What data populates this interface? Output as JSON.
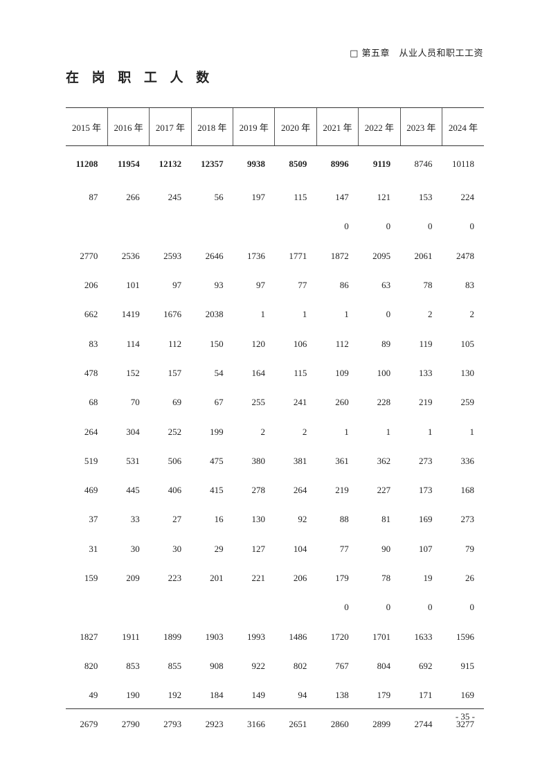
{
  "header": {
    "chapter": "□ 第五章　从业人员和职工工资"
  },
  "title": "在 岗 职 工 人 数",
  "table": {
    "columns": [
      "2015 年",
      "2016 年",
      "2017 年",
      "2018 年",
      "2019 年",
      "2020 年",
      "2021 年",
      "2022 年",
      "2023 年",
      "2024 年"
    ],
    "bold_first_row_columns": 8,
    "rows": [
      [
        "11208",
        "11954",
        "12132",
        "12357",
        "9938",
        "8509",
        "8996",
        "9119",
        "8746",
        "10118"
      ],
      [
        "87",
        "266",
        "245",
        "56",
        "197",
        "115",
        "147",
        "121",
        "153",
        "224"
      ],
      [
        "",
        "",
        "",
        "",
        "",
        "",
        "0",
        "0",
        "0",
        "0"
      ],
      [
        "2770",
        "2536",
        "2593",
        "2646",
        "1736",
        "1771",
        "1872",
        "2095",
        "2061",
        "2478"
      ],
      [
        "206",
        "101",
        "97",
        "93",
        "97",
        "77",
        "86",
        "63",
        "78",
        "83"
      ],
      [
        "662",
        "1419",
        "1676",
        "2038",
        "1",
        "1",
        "1",
        "0",
        "2",
        "2"
      ],
      [
        "83",
        "114",
        "112",
        "150",
        "120",
        "106",
        "112",
        "89",
        "119",
        "105"
      ],
      [
        "478",
        "152",
        "157",
        "54",
        "164",
        "115",
        "109",
        "100",
        "133",
        "130"
      ],
      [
        "68",
        "70",
        "69",
        "67",
        "255",
        "241",
        "260",
        "228",
        "219",
        "259"
      ],
      [
        "264",
        "304",
        "252",
        "199",
        "2",
        "2",
        "1",
        "1",
        "1",
        "1"
      ],
      [
        "519",
        "531",
        "506",
        "475",
        "380",
        "381",
        "361",
        "362",
        "273",
        "336"
      ],
      [
        "469",
        "445",
        "406",
        "415",
        "278",
        "264",
        "219",
        "227",
        "173",
        "168"
      ],
      [
        "37",
        "33",
        "27",
        "16",
        "130",
        "92",
        "88",
        "81",
        "169",
        "273"
      ],
      [
        "31",
        "30",
        "30",
        "29",
        "127",
        "104",
        "77",
        "90",
        "107",
        "79"
      ],
      [
        "159",
        "209",
        "223",
        "201",
        "221",
        "206",
        "179",
        "78",
        "19",
        "26"
      ],
      [
        "",
        "",
        "",
        "",
        "",
        "",
        "0",
        "0",
        "0",
        "0"
      ],
      [
        "1827",
        "1911",
        "1899",
        "1903",
        "1993",
        "1486",
        "1720",
        "1701",
        "1633",
        "1596"
      ],
      [
        "820",
        "853",
        "855",
        "908",
        "922",
        "802",
        "767",
        "804",
        "692",
        "915"
      ],
      [
        "49",
        "190",
        "192",
        "184",
        "149",
        "94",
        "138",
        "179",
        "171",
        "169"
      ],
      [
        "2679",
        "2790",
        "2793",
        "2923",
        "3166",
        "2651",
        "2860",
        "2899",
        "2744",
        "3277"
      ]
    ]
  },
  "footer": {
    "page_number": "- 35 -"
  }
}
